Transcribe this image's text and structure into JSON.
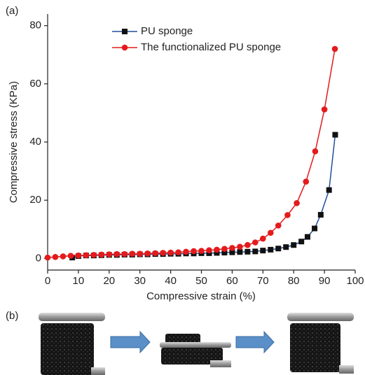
{
  "chart_data": {
    "type": "line",
    "panel_labels": [
      "(a)",
      "(b)"
    ],
    "xlabel": "Compressive strain (%)",
    "ylabel": "Compressive stress (KPa)",
    "xlim": [
      0,
      100
    ],
    "xticks": [
      0,
      10,
      20,
      30,
      40,
      50,
      60,
      70,
      80,
      90,
      100
    ],
    "ylim": [
      -4,
      84
    ],
    "yticks": [
      0,
      20,
      40,
      60,
      80
    ],
    "legend": "upper left",
    "series": [
      {
        "name": "PU sponge",
        "color": "#1f4e9c",
        "marker_color": "#111111",
        "marker": "square",
        "x": [
          8,
          10,
          12.5,
          15,
          17.5,
          20,
          22.5,
          25,
          27.5,
          30,
          32.5,
          35,
          37.5,
          40,
          42.5,
          45,
          47.5,
          50,
          52.5,
          55,
          57.5,
          60,
          62.5,
          65,
          67.5,
          70,
          72.5,
          75,
          77.5,
          80,
          82.5,
          84.5,
          86.8,
          88.8,
          91.5,
          93.5
        ],
        "values": [
          0.3,
          0.8,
          1.0,
          1.0,
          1.1,
          1.2,
          1.2,
          1.3,
          1.3,
          1.4,
          1.4,
          1.5,
          1.5,
          1.6,
          1.6,
          1.7,
          1.7,
          1.8,
          1.8,
          1.9,
          2.0,
          2.1,
          2.2,
          2.3,
          2.4,
          2.7,
          3.0,
          3.4,
          3.9,
          4.6,
          5.8,
          7.4,
          10.3,
          15,
          23.5,
          42.5
        ]
      },
      {
        "name": "The functionalized PU sponge",
        "color": "#e41a1c",
        "marker_color": "#e41a1c",
        "marker": "circle",
        "x": [
          0,
          2.5,
          5,
          7.5,
          10,
          12.5,
          15,
          17.5,
          20,
          22.5,
          25,
          27.5,
          30,
          32.5,
          35,
          37.5,
          40,
          42.5,
          45,
          47.5,
          50,
          52.5,
          55,
          57.5,
          60,
          62.5,
          65,
          67.5,
          70,
          72.5,
          75,
          78,
          81,
          84,
          87,
          90,
          93.4
        ],
        "values": [
          0.3,
          0.5,
          0.7,
          0.9,
          1.0,
          1.1,
          1.2,
          1.3,
          1.4,
          1.5,
          1.5,
          1.6,
          1.6,
          1.7,
          1.8,
          1.9,
          2.0,
          2.1,
          2.3,
          2.5,
          2.6,
          2.8,
          3.0,
          3.3,
          3.6,
          4.0,
          4.6,
          5.5,
          6.8,
          8.8,
          11.3,
          14.9,
          19,
          26.4,
          36.8,
          51.2,
          72
        ]
      }
    ]
  }
}
